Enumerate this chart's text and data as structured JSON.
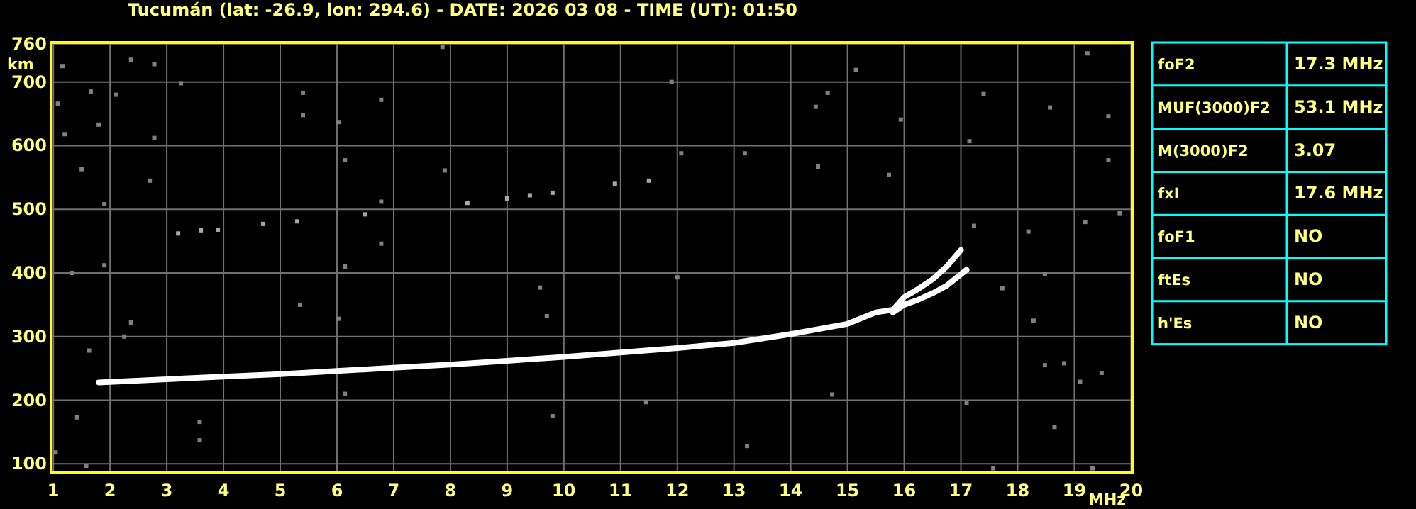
{
  "chart_data": [
    {
      "type": "line",
      "title": "Tucumán (lat: -26.9, lon: 294.6) - DATE: 2026 03 08 - TIME (UT): 01:50",
      "xlabel": "MHz",
      "ylabel": "km",
      "xlim": [
        0.96,
        20.02
      ],
      "ylim": [
        87,
        762
      ],
      "xticks": [
        1,
        2,
        3,
        4,
        5,
        6,
        7,
        8,
        9,
        10,
        11,
        12,
        13,
        14,
        15,
        16,
        17,
        18,
        19,
        20
      ],
      "yticks": [
        100,
        200,
        300,
        400,
        500,
        600,
        700,
        760
      ],
      "grid": true,
      "series": [
        {
          "type": "line",
          "color": "#ffffff",
          "x": [
            1.8,
            3,
            4,
            5,
            6,
            7,
            8,
            9,
            10,
            11,
            12,
            13,
            14,
            15,
            15.5,
            15.8,
            16,
            16.25,
            16.5,
            16.75,
            17
          ],
          "values": [
            228,
            233,
            237,
            241,
            246,
            251,
            256,
            262,
            268,
            275,
            282,
            290,
            304,
            320,
            338,
            342,
            362,
            375,
            390,
            410,
            436
          ]
        },
        {
          "type": "line",
          "color": "#ffffff",
          "x": [
            15.8,
            16,
            16.25,
            16.5,
            16.75,
            17,
            17.1
          ],
          "values": [
            338,
            350,
            358,
            368,
            380,
            398,
            405
          ]
        },
        {
          "type": "scatter",
          "marker": "square",
          "color": "#a8a8a8",
          "x": [
            3.2,
            3.6,
            3.9,
            4.7,
            5.3,
            6.5,
            8.3,
            9,
            9.4,
            9.8,
            10.9,
            11.5
          ],
          "values": [
            462,
            467,
            468,
            477,
            481,
            492,
            510,
            517,
            522,
            526,
            540,
            545
          ]
        },
        {
          "type": "scatter",
          "marker": "square",
          "color": "#808080",
          "x": [
            3.25,
            1.16,
            1.66,
            2.37,
            2.78,
            1.08,
            2.1,
            1.2,
            1.8,
            2.78,
            1.5,
            2.7,
            1.9,
            1.33,
            1.9,
            2.37,
            2.25,
            1.63,
            1.42,
            1.04,
            1.58,
            3.58,
            3.58,
            5.4,
            5.4,
            6.03,
            6.14,
            6.14,
            5.35,
            6.03,
            6.14,
            6.78,
            6.78,
            6.78,
            7.86,
            7.9,
            9.58,
            9.7,
            9.8,
            11.45,
            12,
            12.07,
            11.9,
            15.94,
            14.65,
            14.44,
            13.19,
            14.48,
            15.73,
            17.23,
            18.19,
            18.48,
            17.73,
            18.28,
            18.48,
            18.82,
            19.48,
            19.1,
            17.1,
            18.65,
            19.32,
            17.57,
            19.6,
            19.8,
            19.19,
            19.23,
            18.57,
            19.6,
            17.4,
            17.15,
            14.73,
            13.23,
            15.15
          ],
          "values": [
            698,
            725,
            685,
            735,
            728,
            666,
            680,
            618,
            633,
            612,
            563,
            545,
            508,
            400,
            412,
            322,
            300,
            278,
            173,
            118,
            97,
            166,
            137,
            648,
            683,
            637,
            577,
            410,
            350,
            328,
            210,
            672,
            512,
            446,
            755,
            561,
            377,
            332,
            175,
            197,
            393,
            588,
            700,
            641,
            683,
            661,
            588,
            567,
            554,
            474,
            465,
            398,
            376,
            325,
            255,
            258,
            243,
            229,
            195,
            158,
            93,
            93,
            577,
            494,
            480,
            745,
            660,
            646,
            681,
            607,
            209,
            128,
            719
          ]
        }
      ]
    },
    {
      "type": "other",
      "categories": [
        "foF2",
        "MUF(3000)F2",
        "M(3000)F2",
        "fxI",
        "foF1",
        "ftEs",
        "h'Es"
      ],
      "value_labels": [
        "17.3 MHz",
        "53.1 MHz",
        "3.07",
        "17.6 MHz",
        "NO",
        "NO",
        "NO"
      ]
    }
  ]
}
